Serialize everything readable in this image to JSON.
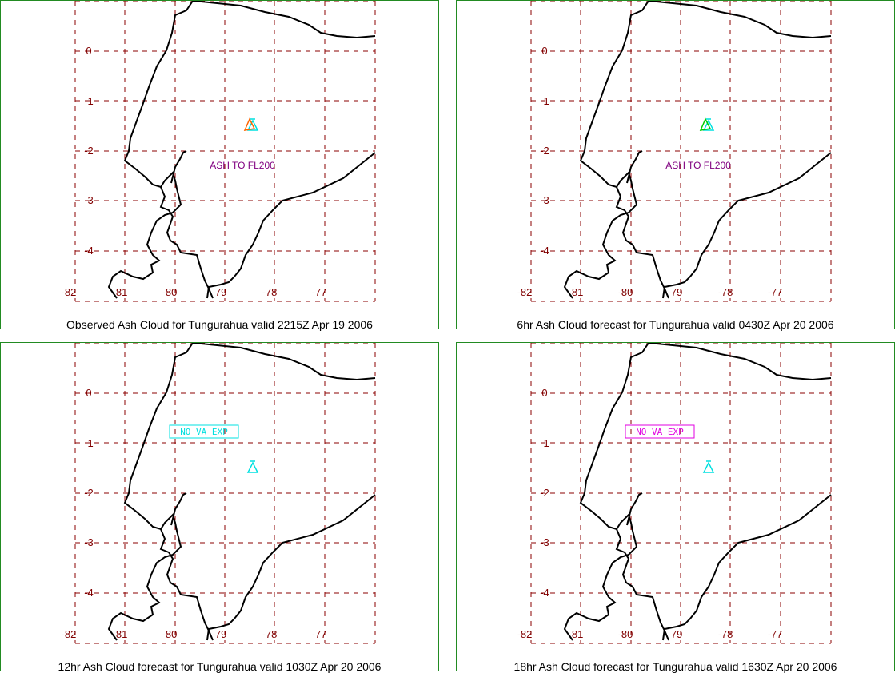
{
  "panels": [
    {
      "caption": "Observed Ash Cloud for Tungurahua valid 2215Z Apr 19 2006",
      "ash_label": "ASH TO FL200",
      "va_label": "",
      "va_color": "",
      "volcano_color": "#00e0e0",
      "cloud_color": "#ff6600"
    },
    {
      "caption": "6hr Ash Cloud forecast for Tungurahua valid 0430Z Apr 20 2006",
      "ash_label": "ASH TO FL200",
      "va_label": "",
      "va_color": "",
      "volcano_color": "#00e0e0",
      "cloud_color": "#00cc00"
    },
    {
      "caption": "12hr Ash Cloud forecast for Tungurahua valid 1030Z Apr 20 2006",
      "ash_label": "",
      "va_label": "NO VA EXP",
      "va_color": "#00e0e0",
      "volcano_color": "#00e0e0",
      "cloud_color": ""
    },
    {
      "caption": "18hr Ash Cloud forecast for Tungurahua valid 1630Z Apr 20 2006",
      "ash_label": "",
      "va_label": "NO VA EXP",
      "va_color": "#e000e0",
      "volcano_color": "#00e0e0",
      "cloud_color": ""
    }
  ],
  "lon_labels": [
    "-82",
    "-81",
    "-80",
    "-79",
    "-78",
    "-77"
  ],
  "lat_labels": [
    "0",
    "-1",
    "-2",
    "-3",
    "-4"
  ],
  "colors": {
    "grid": "#8b0000",
    "border": "#228b22",
    "coast": "#000000",
    "tick": "#800000",
    "ash_text": "#800080"
  }
}
